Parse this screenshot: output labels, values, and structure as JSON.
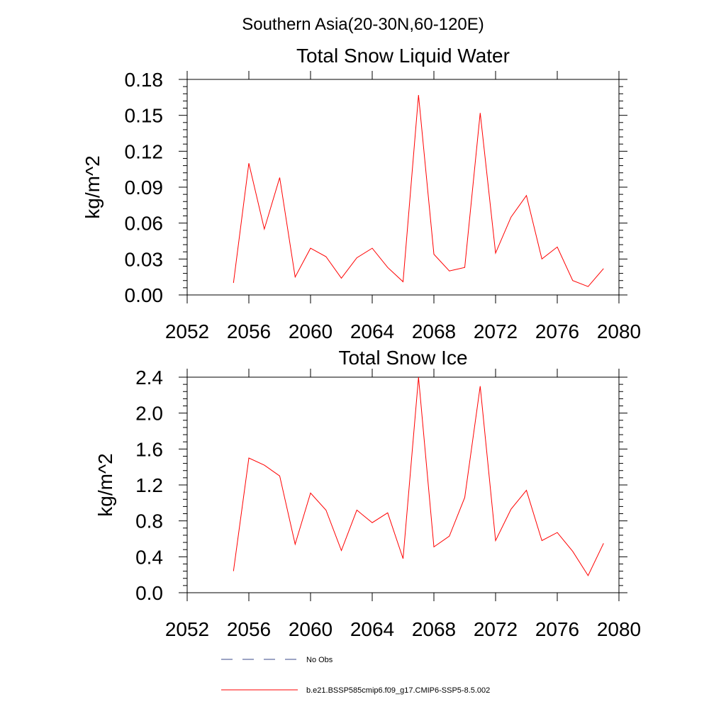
{
  "page_title": "Southern Asia(20-30N,60-120E)",
  "chart_data": [
    {
      "type": "line",
      "title": "Total Snow Liquid Water",
      "ylabel": "kg/m^2",
      "xlabel": "",
      "xlim": [
        2052,
        2080
      ],
      "ylim": [
        0,
        0.18
      ],
      "xticks": [
        2052,
        2056,
        2060,
        2064,
        2068,
        2072,
        2076,
        2080
      ],
      "yticks": [
        0,
        0.03,
        0.06,
        0.09,
        0.12,
        0.15,
        0.18
      ],
      "xtick_labels": [
        "2052",
        "2056",
        "2060",
        "2064",
        "2068",
        "2072",
        "2076",
        "2080"
      ],
      "ytick_labels": [
        "0.00",
        "0.03",
        "0.06",
        "0.09",
        "0.12",
        "0.15",
        "0.18"
      ],
      "grid": false,
      "series": [
        {
          "color": "#ff0000",
          "x": [
            2055,
            2056,
            2057,
            2058,
            2059,
            2060,
            2061,
            2062,
            2063,
            2064,
            2065,
            2066,
            2067,
            2068,
            2069,
            2070,
            2071,
            2072,
            2073,
            2074,
            2075,
            2076,
            2077,
            2078,
            2079
          ],
          "values": [
            0.01,
            0.11,
            0.055,
            0.098,
            0.015,
            0.039,
            0.032,
            0.014,
            0.031,
            0.039,
            0.023,
            0.011,
            0.167,
            0.034,
            0.02,
            0.023,
            0.152,
            0.035,
            0.065,
            0.083,
            0.03,
            0.04,
            0.012,
            0.007,
            0.022
          ]
        }
      ]
    },
    {
      "type": "line",
      "title": "Total Snow Ice",
      "ylabel": "kg/m^2",
      "xlabel": "",
      "xlim": [
        2052,
        2080
      ],
      "ylim": [
        0,
        2.4
      ],
      "xticks": [
        2052,
        2056,
        2060,
        2064,
        2068,
        2072,
        2076,
        2080
      ],
      "yticks": [
        0,
        0.4,
        0.8,
        1.2,
        1.6,
        2.0,
        2.4
      ],
      "xtick_labels": [
        "2052",
        "2056",
        "2060",
        "2064",
        "2068",
        "2072",
        "2076",
        "2080"
      ],
      "ytick_labels": [
        "0.0",
        "0.4",
        "0.8",
        "1.2",
        "1.6",
        "2.0",
        "2.4"
      ],
      "grid": false,
      "series": [
        {
          "color": "#ff0000",
          "x": [
            2055,
            2056,
            2057,
            2058,
            2059,
            2060,
            2061,
            2062,
            2063,
            2064,
            2065,
            2066,
            2067,
            2068,
            2069,
            2070,
            2071,
            2072,
            2073,
            2074,
            2075,
            2076,
            2077,
            2078,
            2079
          ],
          "values": [
            0.24,
            1.5,
            1.42,
            1.3,
            0.54,
            1.11,
            0.92,
            0.47,
            0.92,
            0.78,
            0.89,
            0.38,
            2.4,
            0.51,
            0.63,
            1.06,
            2.3,
            0.58,
            0.93,
            1.14,
            0.58,
            0.67,
            0.46,
            0.19,
            0.55
          ]
        }
      ]
    }
  ],
  "legend": {
    "placement": "bottom-left",
    "items": [
      {
        "label": "No Obs",
        "color": "#3a4a8a",
        "style": "dashed"
      },
      {
        "label": "b.e21.BSSP585cmip6.f09_g17.CMIP6-SSP5-8.5.002",
        "color": "#ff0000",
        "style": "solid"
      }
    ]
  }
}
